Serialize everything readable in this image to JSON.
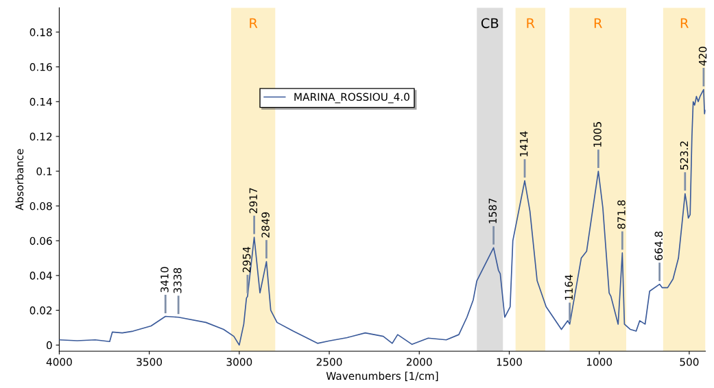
{
  "chart_data": {
    "type": "line",
    "xlabel": "Wavenumbers [1/cm]",
    "ylabel": "Absorbance",
    "xlim": [
      4000,
      410
    ],
    "xticks": [
      4000,
      3500,
      3000,
      2500,
      2000,
      1500,
      1000,
      500
    ],
    "ylim": [
      -0.0035,
      0.194
    ],
    "yticks": [
      0,
      0.02,
      0.04,
      0.06,
      0.08,
      0.1,
      0.12,
      0.14,
      0.16,
      0.18
    ],
    "grid": false,
    "legend": "top",
    "marker": "none",
    "line_style": "solid",
    "series": [
      {
        "name": "MARINA_ROSSIOU_4.0",
        "color": "#3a5a9a",
        "x": [
          4000,
          3900,
          3800,
          3720,
          3705,
          3650,
          3590,
          3490,
          3410,
          3338,
          3185,
          3087,
          3030,
          3000,
          2975,
          2960,
          2954,
          2940,
          2917,
          2885,
          2849,
          2825,
          2790,
          2700,
          2565,
          2500,
          2400,
          2300,
          2200,
          2150,
          2120,
          2040,
          1950,
          1850,
          1780,
          1735,
          1700,
          1680,
          1587,
          1560,
          1550,
          1525,
          1495,
          1480,
          1414,
          1385,
          1345,
          1295,
          1210,
          1175,
          1164,
          1100,
          1070,
          1005,
          980,
          945,
          935,
          895,
          871.8,
          860,
          827,
          795,
          775,
          745,
          720,
          664.8,
          650,
          620,
          590,
          560,
          540,
          523.2,
          515,
          505,
          495,
          485,
          478,
          470,
          460,
          450,
          440,
          420,
          415,
          410
        ],
        "values": [
          0.003,
          0.0025,
          0.003,
          0.002,
          0.0075,
          0.007,
          0.008,
          0.011,
          0.0165,
          0.016,
          0.013,
          0.009,
          0.005,
          0.0,
          0.012,
          0.027,
          0.028,
          0.041,
          0.062,
          0.03,
          0.048,
          0.02,
          0.013,
          0.008,
          0.001,
          0.0024,
          0.0043,
          0.007,
          0.005,
          0.001,
          0.006,
          0.0004,
          0.004,
          0.003,
          0.006,
          0.016,
          0.026,
          0.037,
          0.056,
          0.043,
          0.041,
          0.016,
          0.022,
          0.06,
          0.0945,
          0.077,
          0.037,
          0.022,
          0.009,
          0.014,
          0.012,
          0.05,
          0.054,
          0.1,
          0.079,
          0.03,
          0.028,
          0.012,
          0.053,
          0.012,
          0.009,
          0.008,
          0.014,
          0.012,
          0.031,
          0.035,
          0.033,
          0.033,
          0.038,
          0.05,
          0.07,
          0.087,
          0.082,
          0.073,
          0.075,
          0.12,
          0.14,
          0.138,
          0.143,
          0.14,
          0.143,
          0.147,
          0.133,
          0.135
        ]
      }
    ],
    "bands": [
      {
        "axis": "x",
        "from": 3045,
        "to": 2800,
        "label": "R",
        "color": "#fdf0c8"
      },
      {
        "axis": "x",
        "from": 1680,
        "to": 1535,
        "label": "CB",
        "color": "#dcdcdc"
      },
      {
        "axis": "x",
        "from": 1465,
        "to": 1300,
        "label": "R",
        "color": "#fdf0c8"
      },
      {
        "axis": "x",
        "from": 1165,
        "to": 850,
        "label": "R",
        "color": "#fdf0c8"
      },
      {
        "axis": "x",
        "from": 645,
        "to": 410,
        "label": "R",
        "color": "#fdf0c8"
      }
    ],
    "annotations": [
      {
        "text": "3410",
        "x": 3410,
        "y": 0.0165
      },
      {
        "text": "3338",
        "x": 3338,
        "y": 0.016
      },
      {
        "text": "2954",
        "x": 2954,
        "y": 0.028
      },
      {
        "text": "2917",
        "x": 2917,
        "y": 0.062
      },
      {
        "text": "2849",
        "x": 2849,
        "y": 0.048
      },
      {
        "text": "1587",
        "x": 1587,
        "y": 0.056
      },
      {
        "text": "1414",
        "x": 1414,
        "y": 0.0945
      },
      {
        "text": "1164",
        "x": 1164,
        "y": 0.012
      },
      {
        "text": "1005",
        "x": 1005,
        "y": 0.1
      },
      {
        "text": "871.8",
        "x": 871.8,
        "y": 0.053
      },
      {
        "text": "664.8",
        "x": 664.8,
        "y": 0.035
      },
      {
        "text": "523.2",
        "x": 523.2,
        "y": 0.087
      },
      {
        "text": "420",
        "x": 420,
        "y": 0.147
      }
    ]
  }
}
